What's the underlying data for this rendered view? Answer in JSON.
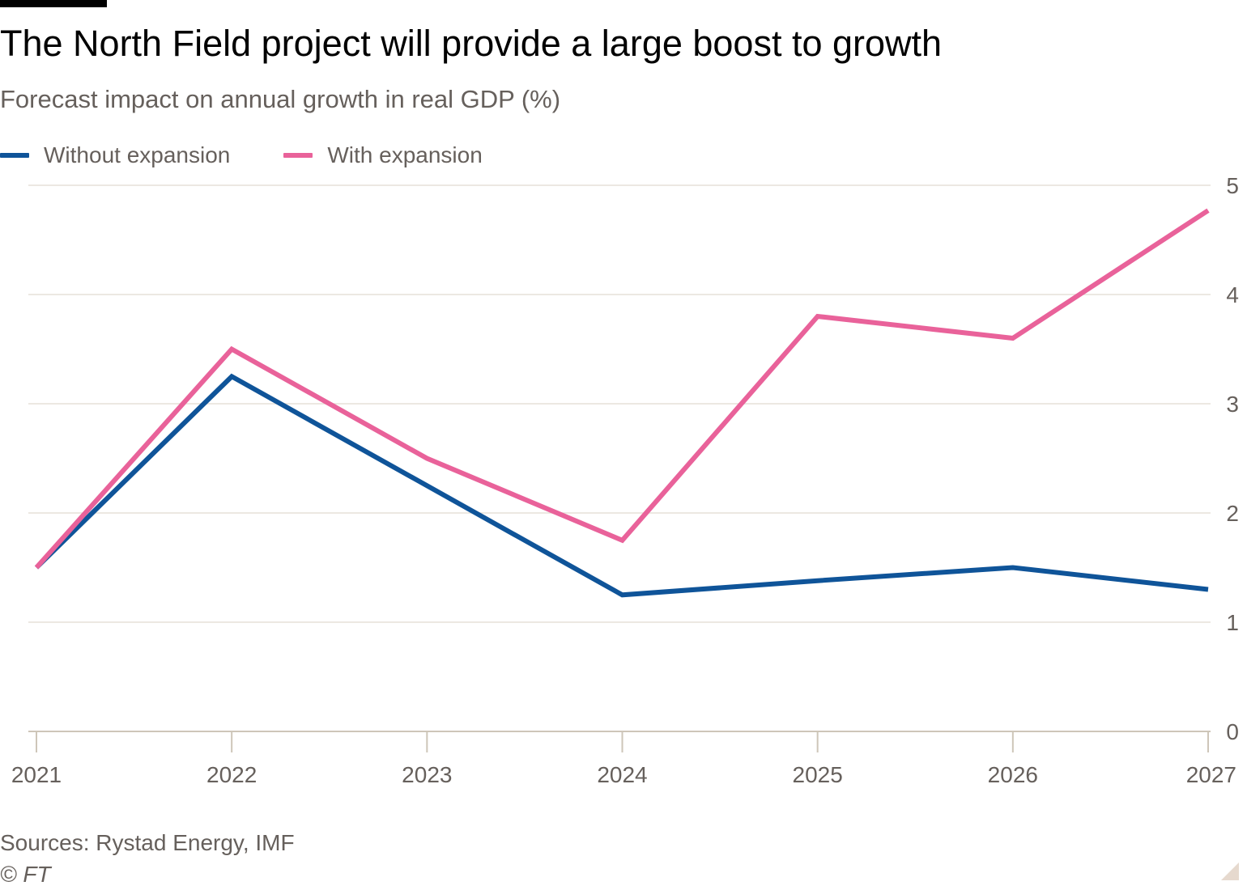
{
  "header": {
    "title": "The North Field project will provide a large boost to growth",
    "subtitle": "Forecast impact on annual growth in real GDP (%)"
  },
  "footer": {
    "source": "Sources: Rystad Energy, IMF",
    "copyright": "© FT"
  },
  "chart_data": {
    "type": "line",
    "title": "The North Field project will provide a large boost to growth",
    "subtitle": "Forecast impact on annual growth in real GDP (%)",
    "xlabel": "",
    "ylabel": "",
    "x": [
      "2021",
      "2022",
      "2023",
      "2024",
      "2025",
      "2026",
      "2027"
    ],
    "ylim": [
      0,
      5
    ],
    "yticks": [
      0,
      1,
      2,
      3,
      4,
      5
    ],
    "y_axis_side": "right",
    "grid": true,
    "legend_position": "top-left",
    "series": [
      {
        "name": "Without expansion",
        "color": "#0f5499",
        "values": [
          1.5,
          3.25,
          2.25,
          1.25,
          1.38,
          1.5,
          1.3
        ]
      },
      {
        "name": "With expansion",
        "color": "#e9629a",
        "values": [
          1.5,
          3.5,
          2.5,
          1.75,
          3.8,
          3.6,
          4.77
        ]
      }
    ]
  }
}
